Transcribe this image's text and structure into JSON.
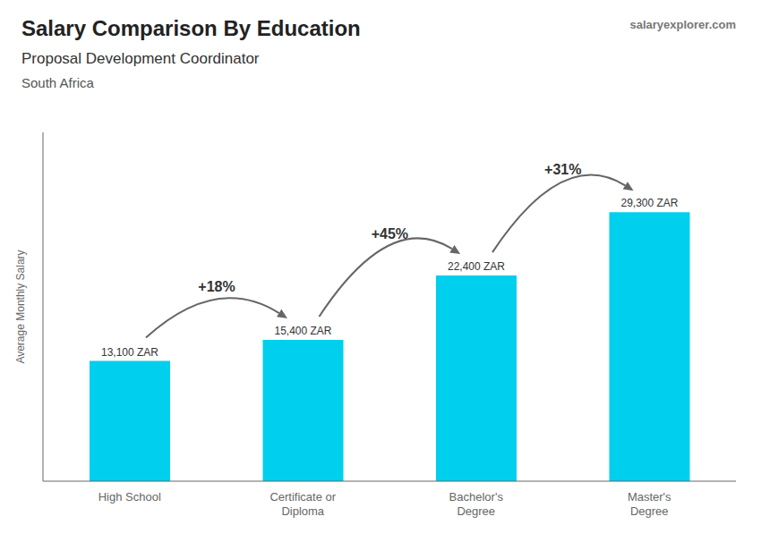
{
  "chart_data": {
    "type": "bar",
    "title": "Salary Comparison By Education",
    "subtitle": "Proposal Development Coordinator",
    "annotations": [
      "South Africa",
      "salaryexplorer.com"
    ],
    "y_label": "Average Monthly Salary",
    "categories": [
      "High School",
      "Certificate or\nDiploma",
      "Bachelor's\nDegree",
      "Master's\nDegree"
    ],
    "values": [
      13100,
      15400,
      22400,
      29300
    ],
    "value_labels": [
      "13,100 ZAR",
      "15,400 ZAR",
      "22,400 ZAR",
      "29,300 ZAR"
    ],
    "data_labels": true,
    "pct_changes": [
      "+18%",
      "+45%",
      "+31%"
    ],
    "color": "#00cfee",
    "ylim": [
      0,
      38000
    ],
    "tick_labels": "x",
    "grid": false
  }
}
